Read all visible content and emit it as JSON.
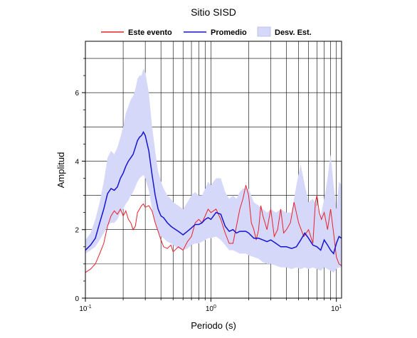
{
  "chart_data": {
    "type": "line",
    "title": "Sitio SISD",
    "xlabel": "Periodo (s)",
    "ylabel": "Amplitud",
    "xscale": "log",
    "xlim": [
      0.1,
      11
    ],
    "ylim": [
      0,
      7.5
    ],
    "grid": true,
    "legend_position": "top",
    "x_ticks": [
      {
        "value": 0.1,
        "base": "10",
        "exp": "-1"
      },
      {
        "value": 1,
        "base": "10",
        "exp": "0"
      },
      {
        "value": 10,
        "base": "10",
        "exp": "1"
      }
    ],
    "y_ticks": [
      0,
      2,
      4,
      6
    ],
    "legend": [
      {
        "label": "Este evento",
        "kind": "line",
        "color": "#e8202a"
      },
      {
        "label": "Promedio",
        "kind": "line",
        "color": "#1414d2"
      },
      {
        "label": "Desv. Est.",
        "kind": "band",
        "color": "#d6d8fa"
      }
    ],
    "series": [
      {
        "name": "Este evento",
        "color": "#e8202a",
        "x": [
          0.1,
          0.11,
          0.12,
          0.13,
          0.14,
          0.15,
          0.16,
          0.17,
          0.18,
          0.19,
          0.2,
          0.21,
          0.22,
          0.23,
          0.24,
          0.25,
          0.26,
          0.27,
          0.28,
          0.29,
          0.3,
          0.32,
          0.34,
          0.36,
          0.38,
          0.4,
          0.42,
          0.45,
          0.48,
          0.5,
          0.55,
          0.6,
          0.65,
          0.7,
          0.75,
          0.8,
          0.85,
          0.9,
          0.95,
          1.0,
          1.1,
          1.2,
          1.3,
          1.4,
          1.5,
          1.6,
          1.7,
          1.8,
          1.9,
          2.0,
          2.1,
          2.2,
          2.3,
          2.4,
          2.5,
          2.6,
          2.7,
          2.8,
          3.0,
          3.2,
          3.4,
          3.6,
          3.8,
          4.0,
          4.3,
          4.6,
          5.0,
          5.5,
          6.0,
          6.5,
          6.8,
          7.0,
          7.3,
          7.6,
          8.0,
          8.5,
          9.0,
          9.5,
          10.0,
          10.5,
          11.0
        ],
        "values": [
          0.75,
          0.85,
          1.0,
          1.3,
          1.6,
          2.1,
          2.4,
          2.55,
          2.45,
          2.6,
          2.4,
          2.55,
          2.3,
          2.2,
          2.0,
          2.1,
          2.5,
          2.6,
          2.7,
          2.75,
          2.65,
          2.7,
          2.55,
          2.2,
          1.95,
          1.7,
          1.5,
          1.45,
          1.55,
          1.35,
          1.5,
          1.4,
          1.65,
          1.8,
          2.2,
          2.3,
          2.2,
          2.4,
          2.6,
          2.5,
          2.6,
          2.3,
          1.9,
          1.6,
          1.6,
          2.1,
          2.6,
          2.9,
          3.3,
          3.0,
          2.2,
          2.0,
          1.7,
          2.0,
          2.7,
          2.4,
          2.2,
          2.0,
          2.6,
          1.8,
          2.0,
          2.6,
          1.9,
          2.0,
          2.2,
          2.8,
          2.2,
          1.8,
          2.0,
          1.6,
          2.8,
          3.0,
          2.5,
          2.3,
          2.5,
          2.0,
          2.6,
          1.9,
          1.2,
          1.0,
          0.95
        ]
      },
      {
        "name": "Promedio",
        "color": "#1414d2",
        "x": [
          0.1,
          0.11,
          0.12,
          0.13,
          0.14,
          0.15,
          0.16,
          0.17,
          0.18,
          0.19,
          0.2,
          0.21,
          0.22,
          0.23,
          0.24,
          0.25,
          0.26,
          0.27,
          0.28,
          0.29,
          0.3,
          0.32,
          0.34,
          0.36,
          0.38,
          0.4,
          0.42,
          0.45,
          0.48,
          0.5,
          0.55,
          0.6,
          0.65,
          0.7,
          0.75,
          0.8,
          0.85,
          0.9,
          0.95,
          1.0,
          1.1,
          1.2,
          1.3,
          1.4,
          1.5,
          1.6,
          1.7,
          1.8,
          1.9,
          2.0,
          2.2,
          2.4,
          2.6,
          2.8,
          3.0,
          3.3,
          3.6,
          4.0,
          4.4,
          4.8,
          5.2,
          5.6,
          6.0,
          6.5,
          7.0,
          7.5,
          8.0,
          8.5,
          9.0,
          9.5,
          10.0,
          10.5,
          11.0
        ],
        "values": [
          1.4,
          1.55,
          1.75,
          2.2,
          2.6,
          3.05,
          3.2,
          3.15,
          3.25,
          3.5,
          3.65,
          3.85,
          4.0,
          4.1,
          4.2,
          4.4,
          4.6,
          4.7,
          4.75,
          4.85,
          4.75,
          4.3,
          3.6,
          3.0,
          2.6,
          2.4,
          2.35,
          2.2,
          2.1,
          2.05,
          1.95,
          1.85,
          1.95,
          2.05,
          2.15,
          2.15,
          2.2,
          2.3,
          2.35,
          2.3,
          2.5,
          2.45,
          2.1,
          1.95,
          2.0,
          1.9,
          1.95,
          1.95,
          1.95,
          1.9,
          1.75,
          1.75,
          1.7,
          1.65,
          1.7,
          1.6,
          1.5,
          1.5,
          1.45,
          1.5,
          1.7,
          1.9,
          1.75,
          1.55,
          1.5,
          1.4,
          1.7,
          1.55,
          1.4,
          1.3,
          1.6,
          1.8,
          1.75
        ]
      }
    ],
    "band": {
      "name": "Desv. Est.",
      "color": "#d6d8fa",
      "x": [
        0.1,
        0.11,
        0.12,
        0.13,
        0.14,
        0.15,
        0.16,
        0.17,
        0.18,
        0.19,
        0.2,
        0.21,
        0.22,
        0.23,
        0.24,
        0.25,
        0.26,
        0.27,
        0.28,
        0.29,
        0.3,
        0.32,
        0.34,
        0.36,
        0.38,
        0.4,
        0.42,
        0.45,
        0.48,
        0.5,
        0.55,
        0.6,
        0.65,
        0.7,
        0.75,
        0.8,
        0.85,
        0.9,
        0.95,
        1.0,
        1.1,
        1.2,
        1.3,
        1.4,
        1.5,
        1.6,
        1.7,
        1.8,
        1.9,
        2.0,
        2.2,
        2.4,
        2.6,
        2.8,
        3.0,
        3.3,
        3.6,
        4.0,
        4.4,
        4.8,
        5.2,
        5.6,
        6.0,
        6.5,
        7.0,
        7.5,
        8.0,
        8.5,
        9.0,
        9.5,
        10.0,
        10.5,
        11.0
      ],
      "upper": [
        1.7,
        1.9,
        2.3,
        2.8,
        3.4,
        4.1,
        4.3,
        4.2,
        4.4,
        4.7,
        5.0,
        5.4,
        5.6,
        5.8,
        5.9,
        6.1,
        6.4,
        6.5,
        6.5,
        6.7,
        6.6,
        6.0,
        5.0,
        4.3,
        3.7,
        3.4,
        3.2,
        3.0,
        2.9,
        2.8,
        2.7,
        2.6,
        2.8,
        3.0,
        3.1,
        3.0,
        3.0,
        3.2,
        3.4,
        3.3,
        3.5,
        3.5,
        3.1,
        2.9,
        3.0,
        2.9,
        3.1,
        3.2,
        3.2,
        3.2,
        2.8,
        2.7,
        2.6,
        2.5,
        2.6,
        2.5,
        2.6,
        2.5,
        2.5,
        3.3,
        3.9,
        3.3,
        2.8,
        2.9,
        2.7,
        2.4,
        2.9,
        3.5,
        4.2,
        3.3,
        2.6,
        3.4,
        3.3
      ],
      "lower": [
        1.3,
        1.4,
        1.5,
        1.7,
        1.9,
        2.1,
        2.2,
        2.2,
        2.3,
        2.5,
        2.6,
        2.75,
        2.85,
        3.0,
        3.1,
        3.25,
        3.4,
        3.5,
        3.55,
        3.6,
        3.5,
        3.15,
        2.6,
        2.2,
        1.9,
        1.8,
        1.75,
        1.65,
        1.6,
        1.55,
        1.45,
        1.4,
        1.45,
        1.55,
        1.6,
        1.6,
        1.65,
        1.7,
        1.75,
        1.75,
        1.8,
        1.7,
        1.55,
        1.4,
        1.4,
        1.35,
        1.3,
        1.3,
        1.3,
        1.25,
        1.2,
        1.15,
        1.05,
        1.0,
        1.0,
        0.95,
        0.9,
        0.9,
        0.85,
        0.9,
        0.85,
        0.9,
        0.85,
        0.9,
        0.85,
        0.8,
        0.9,
        0.85,
        0.8,
        0.75,
        0.85,
        0.9,
        0.9
      ]
    }
  }
}
